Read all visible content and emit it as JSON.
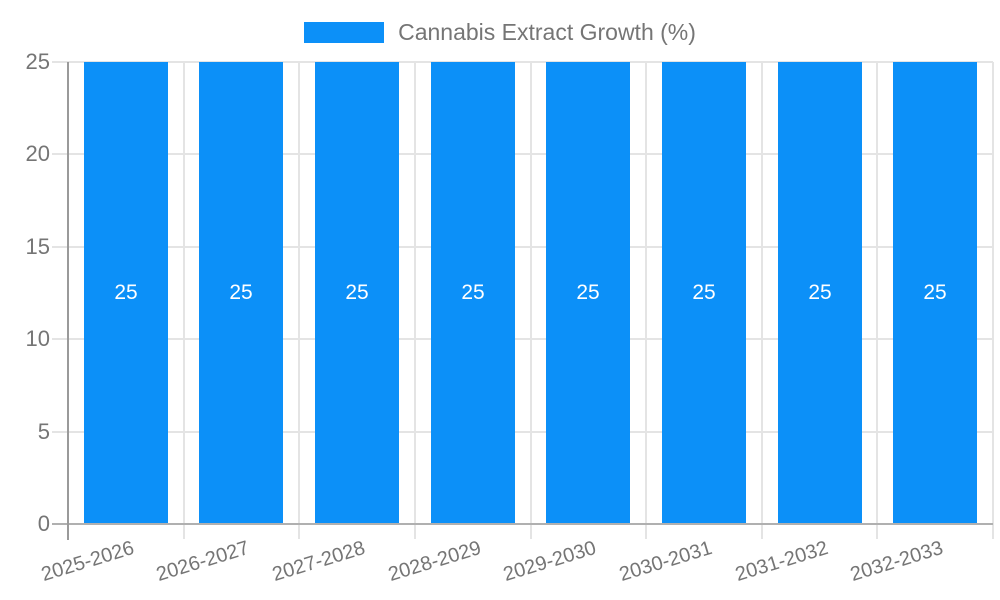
{
  "legend": {
    "title": "Cannabis Extract Growth (%)",
    "swatch_color": "#0c90f8"
  },
  "chart_data": {
    "type": "bar",
    "title": "Cannabis Extract Growth (%)",
    "categories": [
      "2025-2026",
      "2026-2027",
      "2027-2028",
      "2028-2029",
      "2029-2030",
      "2030-2031",
      "2031-2032",
      "2032-2033"
    ],
    "values": [
      25,
      25,
      25,
      25,
      25,
      25,
      25,
      25
    ],
    "bar_labels": [
      "25",
      "25",
      "25",
      "25",
      "25",
      "25",
      "25",
      "25"
    ],
    "xlabel": "",
    "ylabel": "",
    "ylim": [
      0,
      25
    ],
    "yticks": [
      0,
      5,
      10,
      15,
      20,
      25
    ],
    "ytick_labels": [
      "0",
      "5",
      "10",
      "15",
      "20",
      "25"
    ],
    "grid": true,
    "legend_position": "top",
    "bar_color": "#0c90f8",
    "value_label_color": "#ffffff",
    "axis_text_color": "#757575",
    "gridline_color": "#e4e4e4",
    "baseline_color": "#b0b0b0",
    "axis_line_color": "#9a9a9a"
  }
}
